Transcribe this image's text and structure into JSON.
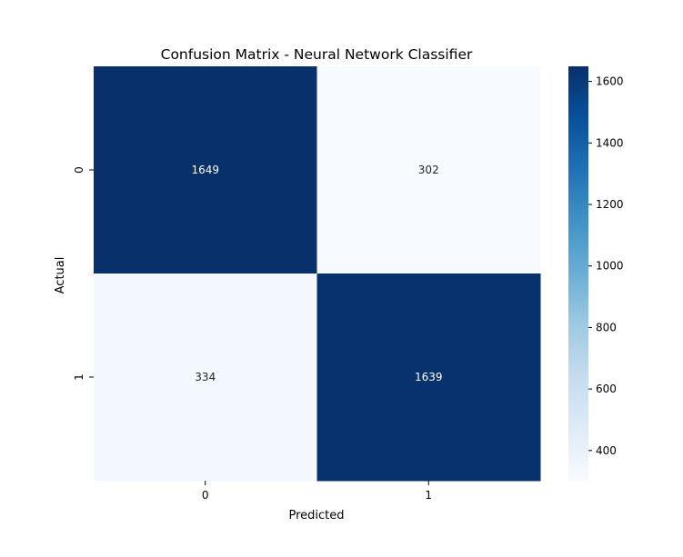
{
  "chart_data": {
    "type": "heatmap",
    "title": "Confusion Matrix - Neural Network Classifier",
    "xlabel": "Predicted",
    "ylabel": "Actual",
    "x_categories": [
      "0",
      "1"
    ],
    "y_categories": [
      "0",
      "1"
    ],
    "values": [
      [
        1649,
        302
      ],
      [
        334,
        1639
      ]
    ],
    "colormap": "Blues",
    "color_low": "#f7fbff",
    "color_high": "#08306b",
    "colorbar": {
      "range": [
        302,
        1649
      ],
      "ticks": [
        400,
        600,
        800,
        1000,
        1200,
        1400,
        1600
      ],
      "tick_labels": [
        "400",
        "600",
        "800",
        "1000",
        "1200",
        "1400",
        "1600"
      ]
    },
    "grid": false,
    "legend": "colorbar-right"
  }
}
